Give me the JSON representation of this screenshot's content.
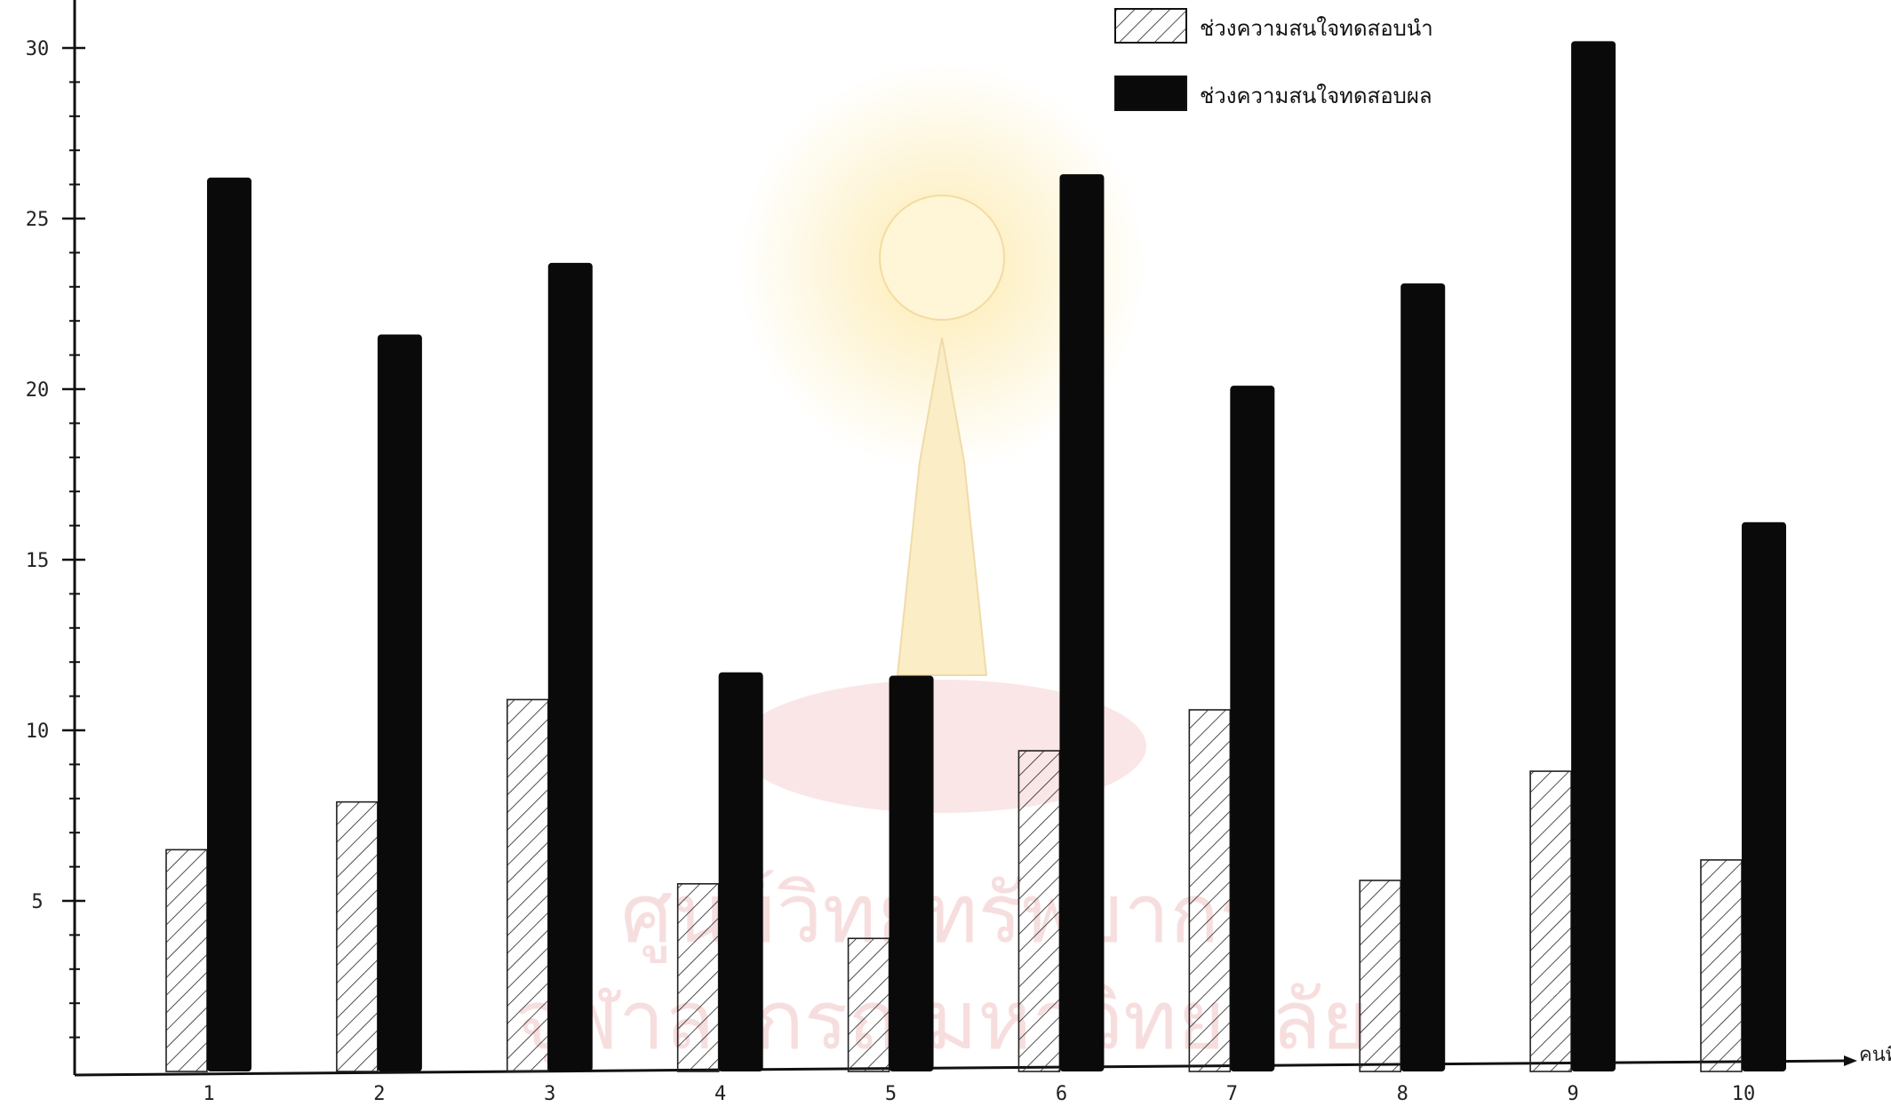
{
  "chart_data": {
    "type": "bar",
    "title": "",
    "xlabel": "",
    "ylabel": "",
    "x_axis_end_label": "คนที่",
    "ylim": [
      0,
      30
    ],
    "y_ticks": [
      5,
      10,
      15,
      20,
      25,
      30
    ],
    "categories": [
      "1",
      "2",
      "3",
      "4",
      "5",
      "6",
      "7",
      "8",
      "9",
      "10"
    ],
    "series": [
      {
        "name": "ช่วงความสนใจทดสอบนำ",
        "style": "hatched",
        "values": [
          6.5,
          7.9,
          10.9,
          5.5,
          3.9,
          9.4,
          10.6,
          5.6,
          8.8,
          6.2
        ]
      },
      {
        "name": "ช่วงความสนใจทดสอบผล",
        "style": "solid",
        "values": [
          26.2,
          21.6,
          23.7,
          11.7,
          11.6,
          26.3,
          20.1,
          23.1,
          30.2,
          16.1
        ]
      }
    ],
    "grid": false,
    "legend_position": "top-right",
    "colors": {
      "hatched": "#ffffff",
      "solid": "#0a0a0a",
      "axis": "#111111",
      "watermark": "#f2c9c9"
    }
  },
  "watermark": {
    "line1": "ศูนย์วิทยทรัพยากร",
    "line2": "จุฬาลงกรณ์มหาวิทยาลัย"
  }
}
